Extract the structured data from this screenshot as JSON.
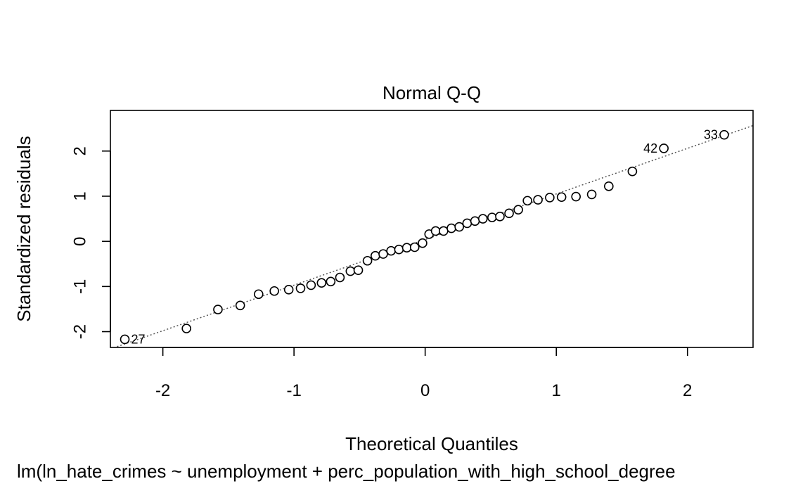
{
  "chart_data": {
    "type": "scatter",
    "title": "Normal Q-Q",
    "xlabel": "Theoretical Quantiles",
    "ylabel": "Standardized residuals",
    "subtitle": "lm(ln_hate_crimes ~ unemployment + perc_population_with_high_school_degree",
    "xlim": [
      -2.4,
      2.5
    ],
    "ylim": [
      -2.35,
      2.9
    ],
    "xticks": [
      -2,
      -1,
      0,
      1,
      2
    ],
    "yticks": [
      -2,
      -1,
      0,
      1,
      2
    ],
    "grid": false,
    "reference_line": {
      "intercept": 0.04,
      "slope": 1.01,
      "style": "dotted"
    },
    "points": [
      {
        "x": -2.29,
        "y": -2.17,
        "label": "27"
      },
      {
        "x": -1.82,
        "y": -1.93
      },
      {
        "x": -1.58,
        "y": -1.51
      },
      {
        "x": -1.41,
        "y": -1.42
      },
      {
        "x": -1.27,
        "y": -1.17
      },
      {
        "x": -1.15,
        "y": -1.1
      },
      {
        "x": -1.04,
        "y": -1.07
      },
      {
        "x": -0.95,
        "y": -1.04
      },
      {
        "x": -0.87,
        "y": -0.97
      },
      {
        "x": -0.79,
        "y": -0.92
      },
      {
        "x": -0.72,
        "y": -0.89
      },
      {
        "x": -0.65,
        "y": -0.8
      },
      {
        "x": -0.57,
        "y": -0.66
      },
      {
        "x": -0.51,
        "y": -0.64
      },
      {
        "x": -0.44,
        "y": -0.43
      },
      {
        "x": -0.38,
        "y": -0.32
      },
      {
        "x": -0.32,
        "y": -0.28
      },
      {
        "x": -0.26,
        "y": -0.21
      },
      {
        "x": -0.2,
        "y": -0.18
      },
      {
        "x": -0.14,
        "y": -0.14
      },
      {
        "x": -0.08,
        "y": -0.13
      },
      {
        "x": -0.02,
        "y": -0.04
      },
      {
        "x": 0.03,
        "y": 0.16
      },
      {
        "x": 0.08,
        "y": 0.23
      },
      {
        "x": 0.14,
        "y": 0.23
      },
      {
        "x": 0.2,
        "y": 0.29
      },
      {
        "x": 0.26,
        "y": 0.32
      },
      {
        "x": 0.32,
        "y": 0.4
      },
      {
        "x": 0.38,
        "y": 0.45
      },
      {
        "x": 0.44,
        "y": 0.5
      },
      {
        "x": 0.51,
        "y": 0.53
      },
      {
        "x": 0.57,
        "y": 0.55
      },
      {
        "x": 0.64,
        "y": 0.62
      },
      {
        "x": 0.71,
        "y": 0.7
      },
      {
        "x": 0.78,
        "y": 0.9
      },
      {
        "x": 0.86,
        "y": 0.92
      },
      {
        "x": 0.95,
        "y": 0.97
      },
      {
        "x": 1.04,
        "y": 0.98
      },
      {
        "x": 1.15,
        "y": 0.99
      },
      {
        "x": 1.27,
        "y": 1.04
      },
      {
        "x": 1.4,
        "y": 1.22
      },
      {
        "x": 1.58,
        "y": 1.55
      },
      {
        "x": 1.82,
        "y": 2.06,
        "label": "42"
      },
      {
        "x": 2.28,
        "y": 2.36,
        "label": "33"
      }
    ]
  }
}
